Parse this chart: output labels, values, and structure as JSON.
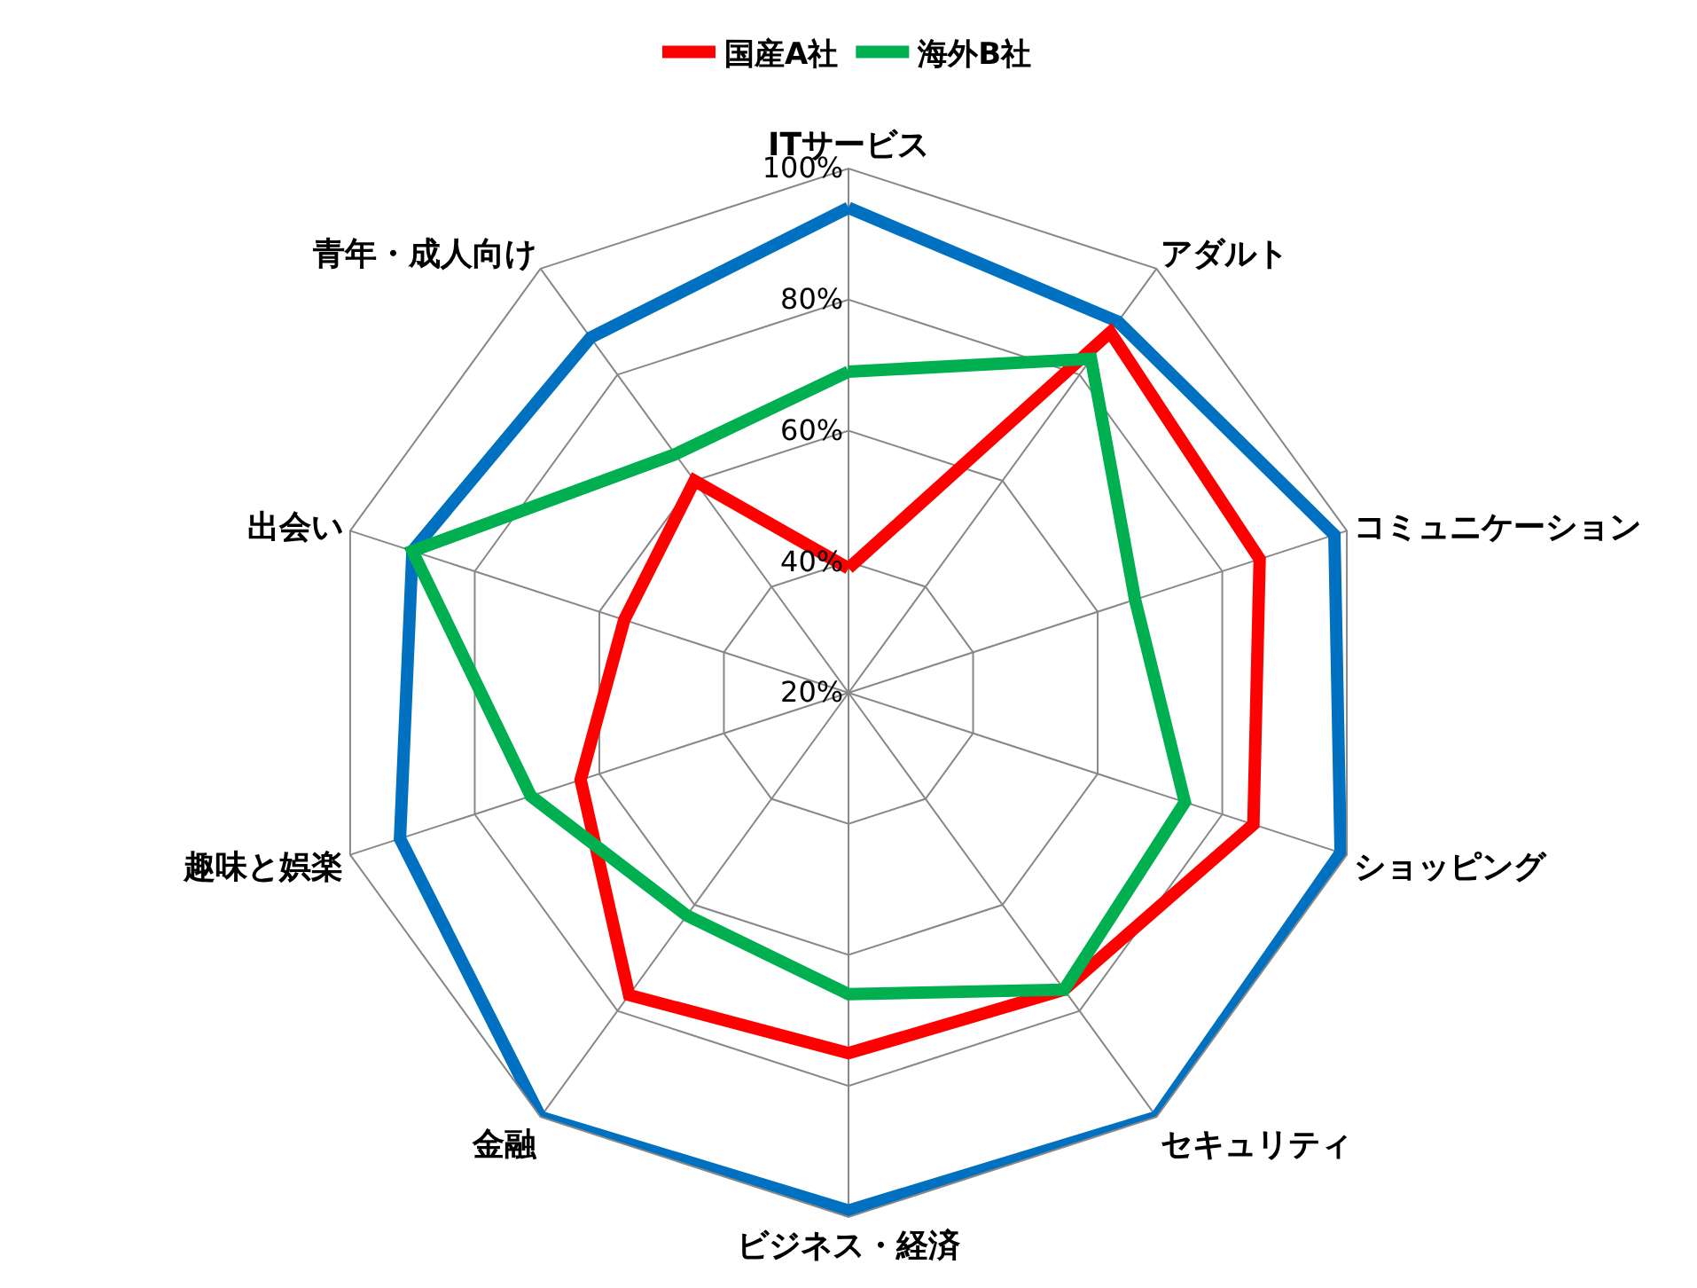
{
  "chart_data": {
    "type": "radar",
    "categories": [
      "ITサービス",
      "アダルト",
      "コミュニケーション",
      "ショッピング",
      "セキュリティ",
      "ビジネス・経済",
      "金融",
      "趣味と娯楽",
      "出会い",
      "青年・成人向け"
    ],
    "series": [
      {
        "color": "#0070c0",
        "values": [
          94,
          90,
          98,
          99,
          100,
          99,
          100,
          92,
          90,
          87
        ]
      },
      {
        "name": "国産A社",
        "color": "#ff0000",
        "values": [
          39,
          88,
          86,
          85,
          76,
          75,
          77,
          63,
          56,
          60
        ]
      },
      {
        "name": "海外B社",
        "color": "#00b050",
        "values": [
          69,
          83,
          66,
          74,
          76,
          66,
          62,
          71,
          90,
          65
        ]
      }
    ],
    "ylim": [
      20,
      100
    ],
    "yticks": [
      {
        "value": 20,
        "label": "20%"
      },
      {
        "value": 40,
        "label": "40%"
      },
      {
        "value": 60,
        "label": "60%"
      },
      {
        "value": 80,
        "label": "80%"
      },
      {
        "value": 100,
        "label": "100%"
      }
    ],
    "grid": true,
    "legend": "top",
    "marker": "none",
    "line_style": "solid"
  }
}
